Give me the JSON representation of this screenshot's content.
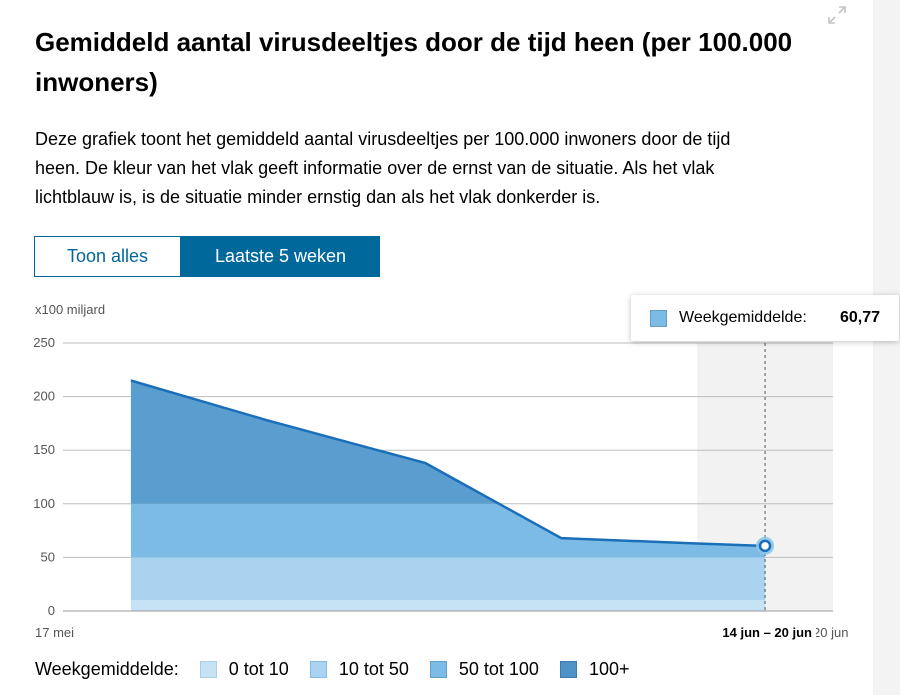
{
  "title": "Gemiddeld aantal virusdeeltjes door de tijd heen (per 100.000 inwoners)",
  "description": "Deze grafiek toont het gemiddeld aantal virusdeeltjes per 100.000 inwoners door de tijd heen. De kleur van het vlak geeft informatie over de ernst van de situatie. Als het vlak lichtblauw is, is de situatie minder ernstig dan als het vlak donkerder is.",
  "toggle": {
    "all_label": "Toon alles",
    "last_label": "Laatste 5 weken",
    "active": "last"
  },
  "tooltip": {
    "label": "Weekgemiddelde:",
    "value": "60,77"
  },
  "legend": {
    "title": "Weekgemiddelde:",
    "items": [
      {
        "label": "0 tot 10",
        "color": "#c6e3f5"
      },
      {
        "label": "10 tot 50",
        "color": "#a9d3ef"
      },
      {
        "label": "50 tot 100",
        "color": "#7cbbe5"
      },
      {
        "label": "100+",
        "color": "#4e93c6"
      }
    ]
  },
  "chart_data": {
    "type": "area",
    "unit_label": "x100 miljard",
    "ylim": [
      0,
      250
    ],
    "yticks": [
      0,
      50,
      100,
      150,
      200,
      250
    ],
    "x_start_label": "17 mei",
    "x_end_label": "20 jun",
    "highlight_label": "14 jun – 20 jun",
    "series": [
      {
        "x": [
          "2021-05-20",
          "2021-05-26",
          "2021-06-02",
          "2021-06-08",
          "2021-06-14",
          "2021-06-17"
        ],
        "values": [
          215,
          178,
          138,
          68,
          63,
          60.77
        ]
      }
    ],
    "thresholds": [
      10,
      50,
      100
    ],
    "band_colors": [
      "#c6e3f5",
      "#a9d3ef",
      "#7cbbe5",
      "#5a9dcf"
    ],
    "line_color": "#1a6fb8",
    "grid": true
  }
}
